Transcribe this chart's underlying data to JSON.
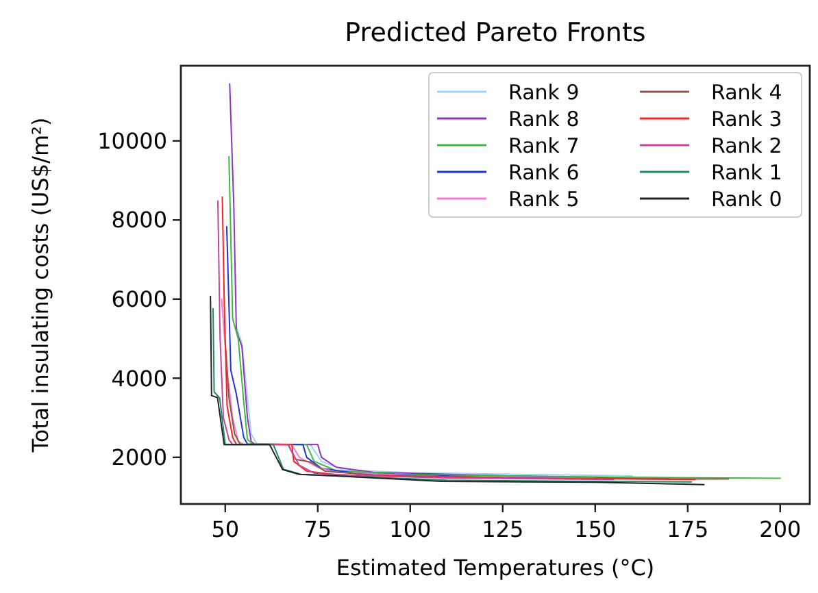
{
  "chart_data": {
    "type": "line",
    "title": "Predicted Pareto Fronts",
    "xlabel": "Estimated Temperatures (°C)",
    "ylabel": "Total insulating costs (US$/m²)",
    "xlim": [
      38,
      208
    ],
    "xticks": [
      50,
      75,
      100,
      125,
      150,
      175,
      200
    ],
    "ylim": [
      820,
      11900
    ],
    "yticks": [
      2000,
      4000,
      6000,
      8000,
      10000
    ],
    "grid": false,
    "legend": "top right",
    "marker": "none",
    "line_style": "solid",
    "series": [
      {
        "name": "Rank 9",
        "color": "#9fd4f2",
        "x": [
          53,
          54.5,
          56,
          57,
          58.5,
          73,
          76,
          82,
          100,
          160
        ],
        "values": [
          5300,
          4900,
          3500,
          2600,
          2340,
          2320,
          1900,
          1680,
          1610,
          1530
        ]
      },
      {
        "name": "Rank 8",
        "color": "#9033c0",
        "x": [
          51.2,
          52.3,
          53,
          54.5,
          56,
          57,
          58,
          75,
          76,
          80,
          90,
          130,
          170
        ],
        "values": [
          11440,
          8400,
          5200,
          4800,
          3000,
          2400,
          2330,
          2320,
          2000,
          1750,
          1620,
          1520,
          1480
        ]
      },
      {
        "name": "Rank 7",
        "color": "#3cbb3c",
        "x": [
          51,
          52,
          53.5,
          55,
          56,
          57.5,
          72,
          74,
          80,
          100,
          150,
          200
        ],
        "values": [
          9600,
          5500,
          5000,
          3400,
          2450,
          2330,
          2320,
          1900,
          1660,
          1570,
          1500,
          1470
        ]
      },
      {
        "name": "Rank 6",
        "color": "#2233dd",
        "x": [
          50.4,
          51.5,
          53,
          55,
          56,
          71,
          72,
          76,
          85,
          120,
          160
        ],
        "values": [
          7830,
          4200,
          3600,
          2500,
          2340,
          2320,
          2000,
          1720,
          1600,
          1500,
          1460
        ]
      },
      {
        "name": "Rank 5",
        "color": "#ff77cc",
        "x": [
          49,
          50.5,
          52,
          53.5,
          55,
          68,
          70,
          75,
          80,
          110,
          150
        ],
        "values": [
          6000,
          4200,
          3000,
          2400,
          2330,
          2320,
          2000,
          1750,
          1620,
          1510,
          1470
        ]
      },
      {
        "name": "Rank 4",
        "color": "#8b5a4a",
        "x": [
          50,
          51,
          52.5,
          54,
          67,
          69,
          73,
          77,
          90,
          130,
          186
        ],
        "values": [
          4900,
          3500,
          2600,
          2330,
          2320,
          1950,
          1880,
          1650,
          1550,
          1470,
          1450
        ]
      },
      {
        "name": "Rank 3",
        "color": "#ff2020",
        "x": [
          49.2,
          49.8,
          50.5,
          52,
          53,
          68,
          68.5,
          72,
          80,
          110,
          150,
          177
        ],
        "values": [
          8580,
          5600,
          3300,
          2500,
          2330,
          2320,
          1900,
          1650,
          1560,
          1490,
          1460,
          1440
        ]
      },
      {
        "name": "Rank 2",
        "color": "#c8449a",
        "x": [
          48,
          48.6,
          49.5,
          51,
          52,
          67,
          70,
          74,
          85,
          110,
          155
        ],
        "values": [
          8480,
          5000,
          3000,
          2450,
          2320,
          2320,
          1800,
          1600,
          1540,
          1480,
          1440
        ]
      },
      {
        "name": "Rank 1",
        "color": "#1a8a6a",
        "x": [
          46.7,
          47,
          48.5,
          50,
          63,
          65.7,
          70.5,
          80,
          110,
          150,
          176
        ],
        "values": [
          5760,
          3650,
          3500,
          2320,
          2320,
          1700,
          1570,
          1530,
          1420,
          1390,
          1380
        ]
      },
      {
        "name": "Rank 0",
        "color": "#222222",
        "x": [
          46,
          46.3,
          47.9,
          49.7,
          62,
          65.5,
          70,
          80,
          108.6,
          150,
          179.4
        ],
        "values": [
          6070,
          3560,
          3510,
          2320,
          2320,
          1690,
          1570,
          1530,
          1390,
          1370,
          1310
        ]
      }
    ]
  }
}
